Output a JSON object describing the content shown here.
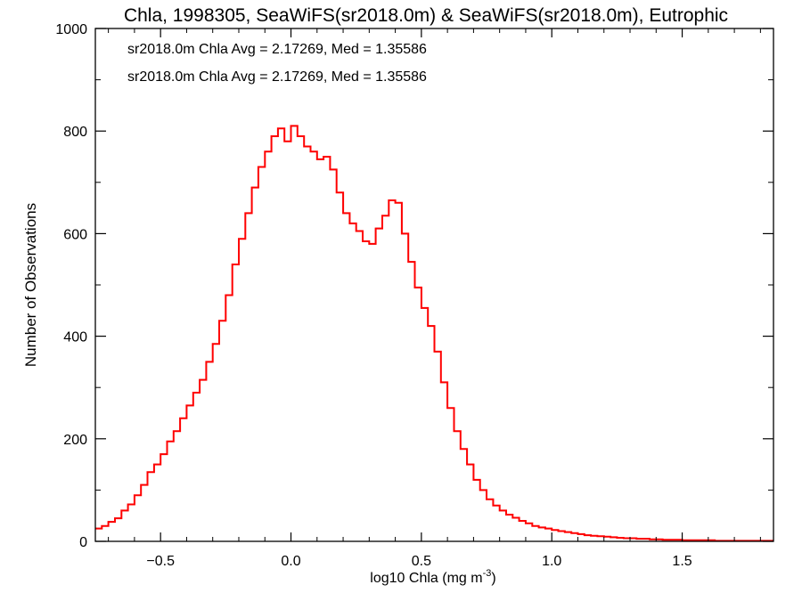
{
  "chart_data": {
    "type": "line",
    "title": "Chla, 1998305, SeaWiFS(sr2018.0m) & SeaWiFS(sr2018.0m), Eutrophic",
    "xlabel": "log10 Chla (mg m",
    "xlabel_sup": "-3",
    "xlabel_close": ")",
    "ylabel": "Number of Observations",
    "xlim": [
      -0.75,
      1.85
    ],
    "ylim": [
      0,
      1000
    ],
    "x_ticks": [
      -0.5,
      0.0,
      0.5,
      1.0,
      1.5
    ],
    "x_tick_labels": [
      "−0.5",
      "0.0",
      "0.5",
      "1.0",
      "1.5"
    ],
    "y_ticks": [
      0,
      200,
      400,
      600,
      800,
      1000
    ],
    "y_tick_labels": [
      "0",
      "200",
      "400",
      "600",
      "800",
      "1000"
    ],
    "grid": false,
    "annotations": [
      {
        "text": "sr2018.0m Chla Avg = 2.17269, Med = 1.35586",
        "color": "#000000"
      },
      {
        "text": "sr2018.0m Chla Avg = 2.17269, Med = 1.35586",
        "color": "#ff0000"
      }
    ],
    "series": [
      {
        "color": "#000000",
        "x": [
          -0.75,
          -0.725,
          -0.7,
          -0.675,
          -0.65,
          -0.625,
          -0.6,
          -0.575,
          -0.55,
          -0.525,
          -0.5,
          -0.475,
          -0.45,
          -0.425,
          -0.4,
          -0.375,
          -0.35,
          -0.325,
          -0.3,
          -0.275,
          -0.25,
          -0.225,
          -0.2,
          -0.175,
          -0.15,
          -0.125,
          -0.1,
          -0.075,
          -0.05,
          -0.025,
          0.0,
          0.025,
          0.05,
          0.075,
          0.1,
          0.125,
          0.15,
          0.175,
          0.2,
          0.225,
          0.25,
          0.275,
          0.3,
          0.325,
          0.35,
          0.375,
          0.4,
          0.425,
          0.45,
          0.475,
          0.5,
          0.525,
          0.55,
          0.575,
          0.6,
          0.625,
          0.65,
          0.675,
          0.7,
          0.725,
          0.75,
          0.775,
          0.8,
          0.825,
          0.85,
          0.875,
          0.9,
          0.925,
          0.95,
          0.975,
          1.0,
          1.025,
          1.05,
          1.075,
          1.1,
          1.125,
          1.15,
          1.175,
          1.2,
          1.225,
          1.25,
          1.275,
          1.3,
          1.325,
          1.35,
          1.375,
          1.4,
          1.425,
          1.45,
          1.475,
          1.5,
          1.525,
          1.55,
          1.575,
          1.6,
          1.625,
          1.65,
          1.675,
          1.7,
          1.725,
          1.75,
          1.775,
          1.8,
          1.825
        ],
        "values": [
          25,
          30,
          38,
          45,
          60,
          72,
          90,
          110,
          135,
          150,
          170,
          195,
          215,
          240,
          265,
          290,
          315,
          350,
          385,
          430,
          480,
          540,
          590,
          640,
          690,
          730,
          760,
          790,
          805,
          780,
          810,
          790,
          770,
          760,
          745,
          750,
          725,
          680,
          640,
          620,
          605,
          585,
          580,
          610,
          635,
          665,
          660,
          600,
          545,
          495,
          455,
          420,
          370,
          310,
          260,
          215,
          180,
          150,
          120,
          100,
          82,
          70,
          60,
          52,
          46,
          40,
          35,
          30,
          27,
          25,
          22,
          20,
          18,
          16,
          14,
          12,
          11,
          10,
          9,
          8,
          7,
          6,
          6,
          5,
          5,
          4,
          4,
          3,
          3,
          3,
          2,
          2,
          2,
          2,
          2,
          1,
          1,
          1,
          1,
          1,
          1,
          1,
          1,
          1
        ]
      },
      {
        "color": "#ff0000",
        "x": [
          -0.75,
          -0.725,
          -0.7,
          -0.675,
          -0.65,
          -0.625,
          -0.6,
          -0.575,
          -0.55,
          -0.525,
          -0.5,
          -0.475,
          -0.45,
          -0.425,
          -0.4,
          -0.375,
          -0.35,
          -0.325,
          -0.3,
          -0.275,
          -0.25,
          -0.225,
          -0.2,
          -0.175,
          -0.15,
          -0.125,
          -0.1,
          -0.075,
          -0.05,
          -0.025,
          0.0,
          0.025,
          0.05,
          0.075,
          0.1,
          0.125,
          0.15,
          0.175,
          0.2,
          0.225,
          0.25,
          0.275,
          0.3,
          0.325,
          0.35,
          0.375,
          0.4,
          0.425,
          0.45,
          0.475,
          0.5,
          0.525,
          0.55,
          0.575,
          0.6,
          0.625,
          0.65,
          0.675,
          0.7,
          0.725,
          0.75,
          0.775,
          0.8,
          0.825,
          0.85,
          0.875,
          0.9,
          0.925,
          0.95,
          0.975,
          1.0,
          1.025,
          1.05,
          1.075,
          1.1,
          1.125,
          1.15,
          1.175,
          1.2,
          1.225,
          1.25,
          1.275,
          1.3,
          1.325,
          1.35,
          1.375,
          1.4,
          1.425,
          1.45,
          1.475,
          1.5,
          1.525,
          1.55,
          1.575,
          1.6,
          1.625,
          1.65,
          1.675,
          1.7,
          1.725,
          1.75,
          1.775,
          1.8,
          1.825
        ],
        "values": [
          25,
          30,
          38,
          45,
          60,
          72,
          90,
          110,
          135,
          150,
          170,
          195,
          215,
          240,
          265,
          290,
          315,
          350,
          385,
          430,
          480,
          540,
          590,
          640,
          690,
          730,
          760,
          790,
          805,
          780,
          810,
          790,
          770,
          760,
          745,
          750,
          725,
          680,
          640,
          620,
          605,
          585,
          580,
          610,
          635,
          665,
          660,
          600,
          545,
          495,
          455,
          420,
          370,
          310,
          260,
          215,
          180,
          150,
          120,
          100,
          82,
          70,
          60,
          52,
          46,
          40,
          35,
          30,
          27,
          25,
          22,
          20,
          18,
          16,
          14,
          12,
          11,
          10,
          9,
          8,
          7,
          6,
          6,
          5,
          5,
          4,
          4,
          3,
          3,
          3,
          2,
          2,
          2,
          2,
          2,
          1,
          1,
          1,
          1,
          1,
          1,
          1,
          1,
          1
        ]
      }
    ]
  }
}
